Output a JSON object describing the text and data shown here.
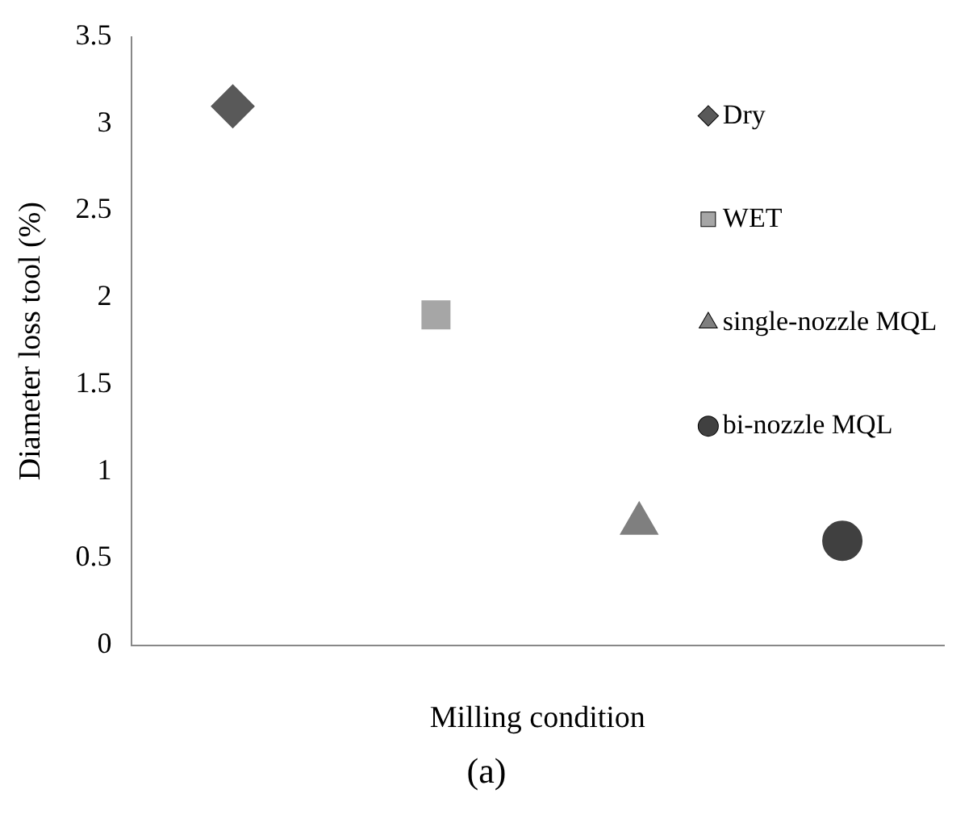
{
  "chart_data": {
    "type": "scatter",
    "xlabel": "Milling condition",
    "ylabel": "Diameter loss tool (%)",
    "categories": [
      null,
      null,
      null,
      null
    ],
    "series": [
      {
        "name": "Dry",
        "color": "#595959",
        "marker": "diamond",
        "values": [
          3.1,
          null,
          null,
          null
        ]
      },
      {
        "name": "WET",
        "color": "#a6a6a6",
        "marker": "square",
        "values": [
          null,
          1.9,
          null,
          null
        ]
      },
      {
        "name": "single-nozzle MQL",
        "color": "#7f7f7f",
        "marker": "triangle",
        "values": [
          null,
          null,
          0.7,
          null
        ]
      },
      {
        "name": "bi-nozzle MQL",
        "color": "#404040",
        "marker": "circle",
        "values": [
          null,
          null,
          null,
          0.6
        ]
      }
    ],
    "ylim": [
      0,
      3.5
    ],
    "yticks": [
      0,
      0.5,
      1,
      1.5,
      2,
      2.5,
      3,
      3.5
    ],
    "grid": false,
    "legend": "top right",
    "annotations": [
      "(a)"
    ]
  }
}
